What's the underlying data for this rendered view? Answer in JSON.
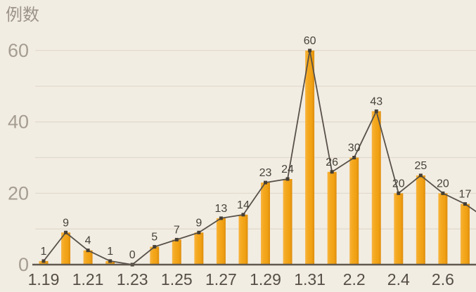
{
  "chart_data": {
    "type": "bar",
    "subtype": "bar-with-line-overlay",
    "title": "例数",
    "categories": [
      "1.19",
      "1.20",
      "1.21",
      "1.22",
      "1.23",
      "1.24",
      "1.25",
      "1.26",
      "1.27",
      "1.28",
      "1.29",
      "1.30",
      "1.31",
      "2.1",
      "2.2",
      "2.3",
      "2.4",
      "2.5",
      "2.6",
      "2.7"
    ],
    "values": [
      1,
      9,
      4,
      1,
      0,
      5,
      7,
      9,
      13,
      14,
      23,
      24,
      60,
      26,
      30,
      43,
      20,
      25,
      20,
      17
    ],
    "value_labels": [
      "1",
      "9",
      "4",
      "1",
      "0",
      "5",
      "7",
      "9",
      "13",
      "14",
      "23",
      "24",
      "60",
      "26",
      "30",
      "43",
      "20",
      "25",
      "20",
      "17"
    ],
    "x_tick_labels": [
      "1.19",
      "1.21",
      "1.23",
      "1.25",
      "1.27",
      "1.29",
      "1.31",
      "2.2",
      "2.4",
      "2.6"
    ],
    "x_tick_indices": [
      0,
      2,
      4,
      6,
      8,
      10,
      12,
      14,
      16,
      18
    ],
    "y_ticks": [
      "0",
      "20",
      "40",
      "60"
    ],
    "y_tick_values": [
      0,
      20,
      40,
      60
    ],
    "ylim": [
      0,
      60
    ],
    "gridlines": "horizontal every 10 units",
    "legend": "none",
    "line_continues_past_right_edge": true,
    "colors": {
      "background": "#F2EDE3",
      "bar_light": "#F8B440",
      "bar_main": "#F2A415",
      "bar_dark": "#DD8E0E",
      "line": "#57514A",
      "marker": "#453F37",
      "value_label": "#47423A",
      "x_label": "#544E46",
      "y_label": "#A59D91",
      "grid_line": "#E1D9CC",
      "axis_line": "#5F594F",
      "title": "#9C948A"
    }
  }
}
